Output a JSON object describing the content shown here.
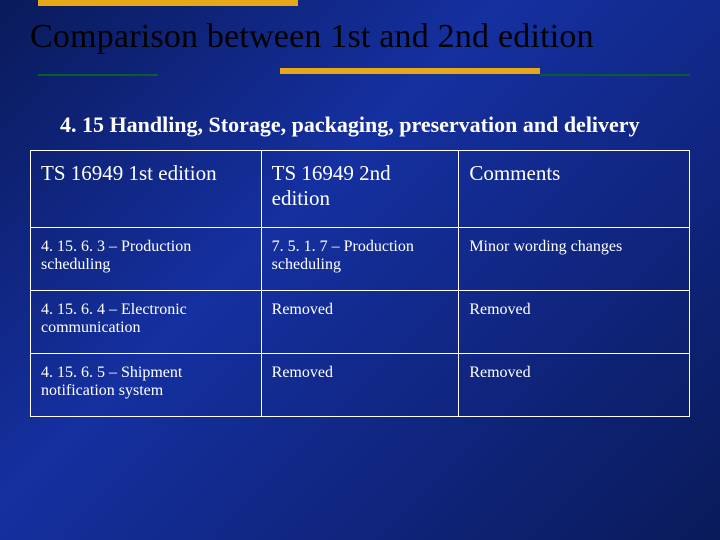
{
  "title": "Comparison between 1st and 2nd edition",
  "subtitle": "4. 15 Handling, Storage, packaging, preservation and delivery",
  "accent_color": "#e6a817",
  "green_color": "#0b5c2c",
  "table": {
    "columns": [
      "TS 16949 1st edition",
      "TS 16949  2nd edition",
      "Comments"
    ],
    "rows": [
      [
        "4. 15. 6. 3 – Production scheduling",
        "7. 5. 1. 7 – Production scheduling",
        "Minor wording changes"
      ],
      [
        "4. 15. 6. 4 – Electronic communication",
        "Removed",
        "Removed"
      ],
      [
        "4. 15. 6. 5 – Shipment notification system",
        "Removed",
        "Removed"
      ]
    ]
  }
}
